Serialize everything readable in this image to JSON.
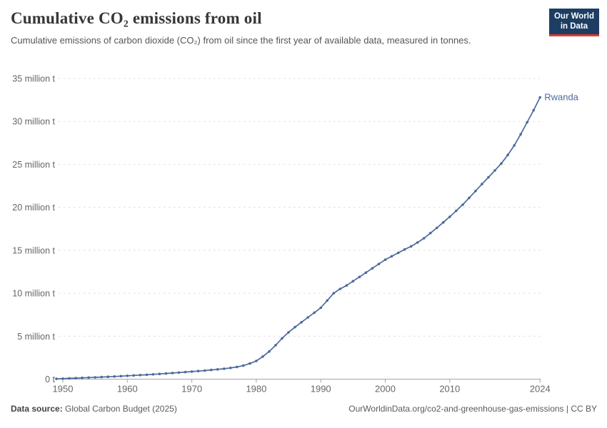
{
  "header": {
    "title": "Cumulative CO₂ emissions from oil",
    "subtitle": "Cumulative emissions of carbon dioxide (CO₂) from oil since the first year of available data, measured in tonnes.",
    "logo": {
      "line1": "Our World",
      "line2": "in Data"
    }
  },
  "chart_data": {
    "type": "line",
    "title": "Cumulative CO₂ emissions from oil",
    "unit": "million t",
    "xlim": [
      1949,
      2024
    ],
    "ylim": [
      0,
      35
    ],
    "grid": "horizontal-dashed",
    "legend_position": "end-of-line-label",
    "x_ticks": [
      1950,
      1960,
      1970,
      1980,
      1990,
      2000,
      2010,
      2024
    ],
    "x_tick_labels": [
      "1950",
      "1960",
      "1970",
      "1980",
      "1990",
      "2000",
      "2010",
      "2024"
    ],
    "y_ticks": [
      0,
      5,
      10,
      15,
      20,
      25,
      30,
      35
    ],
    "y_tick_labels": [
      "0 t",
      "5 million t",
      "10 million t",
      "15 million t",
      "20 million t",
      "25 million t",
      "30 million t",
      "35 million t"
    ],
    "series": [
      {
        "name": "Rwanda",
        "color": "#4C6A9C",
        "x": [
          1949,
          1950,
          1951,
          1952,
          1953,
          1954,
          1955,
          1956,
          1957,
          1958,
          1959,
          1960,
          1961,
          1962,
          1963,
          1964,
          1965,
          1966,
          1967,
          1968,
          1969,
          1970,
          1971,
          1972,
          1973,
          1974,
          1975,
          1976,
          1977,
          1978,
          1979,
          1980,
          1981,
          1982,
          1983,
          1984,
          1985,
          1986,
          1987,
          1988,
          1989,
          1990,
          1991,
          1992,
          1993,
          1994,
          1995,
          1996,
          1997,
          1998,
          1999,
          2000,
          2001,
          2002,
          2003,
          2004,
          2005,
          2006,
          2007,
          2008,
          2009,
          2010,
          2011,
          2012,
          2013,
          2014,
          2015,
          2016,
          2017,
          2018,
          2019,
          2020,
          2021,
          2022,
          2023,
          2024
        ],
        "values": [
          0.03,
          0.06,
          0.09,
          0.12,
          0.15,
          0.18,
          0.21,
          0.24,
          0.27,
          0.31,
          0.35,
          0.39,
          0.43,
          0.47,
          0.51,
          0.56,
          0.61,
          0.66,
          0.71,
          0.76,
          0.82,
          0.88,
          0.94,
          1.0,
          1.07,
          1.14,
          1.21,
          1.3,
          1.42,
          1.58,
          1.82,
          2.12,
          2.62,
          3.22,
          3.95,
          4.75,
          5.45,
          6.05,
          6.62,
          7.18,
          7.74,
          8.3,
          9.15,
          10.0,
          10.5,
          10.9,
          11.4,
          11.9,
          12.4,
          12.9,
          13.4,
          13.9,
          14.3,
          14.7,
          15.1,
          15.45,
          15.9,
          16.4,
          17.0,
          17.6,
          18.25,
          18.9,
          19.6,
          20.3,
          21.1,
          21.9,
          22.7,
          23.5,
          24.3,
          25.1,
          26.1,
          27.2,
          28.5,
          29.9,
          31.3,
          32.8
        ]
      }
    ]
  },
  "footer": {
    "source_label": "Data source:",
    "source_value": "Global Carbon Budget (2025)",
    "attribution": "OurWorldinData.org/co2-and-greenhouse-gas-emissions | CC BY"
  },
  "colors": {
    "line": "#4C6A9C",
    "grid": "#dcdcdc",
    "axis": "#a5a5a5",
    "axis_text": "#666666",
    "title": "#383636",
    "subtitle": "#555555",
    "logo_bg": "#1d3d63",
    "logo_red": "#d93a34"
  }
}
